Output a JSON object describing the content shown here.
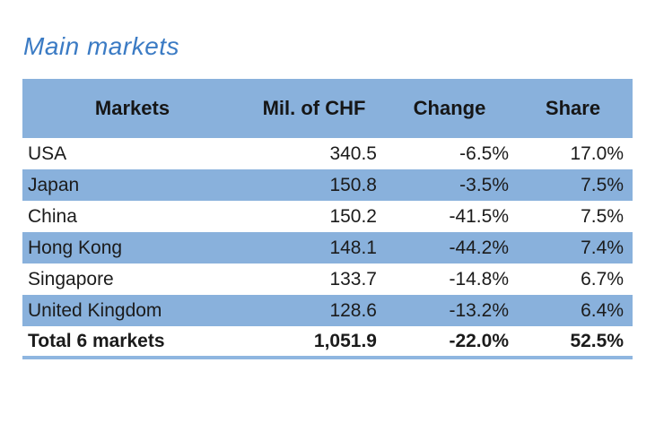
{
  "title": "Main markets",
  "table": {
    "headers": [
      "Markets",
      "Mil. of CHF",
      "Change",
      "Share"
    ],
    "rows": [
      {
        "market": "USA",
        "chf": "340.5",
        "change": "-6.5%",
        "share": "17.0%"
      },
      {
        "market": "Japan",
        "chf": "150.8",
        "change": "-3.5%",
        "share": "7.5%"
      },
      {
        "market": "China",
        "chf": "150.2",
        "change": "-41.5%",
        "share": "7.5%"
      },
      {
        "market": "Hong Kong",
        "chf": "148.1",
        "change": "-44.2%",
        "share": "7.4%"
      },
      {
        "market": "Singapore",
        "chf": "133.7",
        "change": "-14.8%",
        "share": "6.7%"
      },
      {
        "market": "United Kingdom",
        "chf": "128.6",
        "change": "-13.2%",
        "share": "6.4%"
      }
    ],
    "total_row": {
      "market": "Total 6 markets",
      "chf": "1,051.9",
      "change": "-22.0%",
      "share": "52.5%"
    }
  },
  "colors": {
    "band_blue": "#89b1dc",
    "title_blue": "#3b7bc4",
    "bottom_border_blue": "#8fb6e0",
    "text": "#1b1b1b",
    "background": "#ffffff"
  },
  "chart_data": {
    "type": "table",
    "title": "Main markets",
    "columns": [
      "Markets",
      "Mil. of CHF",
      "Change",
      "Share"
    ],
    "rows": [
      [
        "USA",
        340.5,
        -6.5,
        17.0
      ],
      [
        "Japan",
        150.8,
        -3.5,
        7.5
      ],
      [
        "China",
        150.2,
        -41.5,
        7.5
      ],
      [
        "Hong Kong",
        148.1,
        -44.2,
        7.4
      ],
      [
        "Singapore",
        133.7,
        -14.8,
        6.7
      ],
      [
        "United Kingdom",
        128.6,
        -13.2,
        6.4
      ]
    ],
    "total": [
      "Total 6 markets",
      1051.9,
      -22.0,
      52.5
    ],
    "units": {
      "Mil. of CHF": "millions of CHF",
      "Change": "percent",
      "Share": "percent"
    },
    "layout": {
      "banded_rows": true,
      "header_fill": "#89b1dc",
      "band_fill": "#89b1dc"
    }
  }
}
